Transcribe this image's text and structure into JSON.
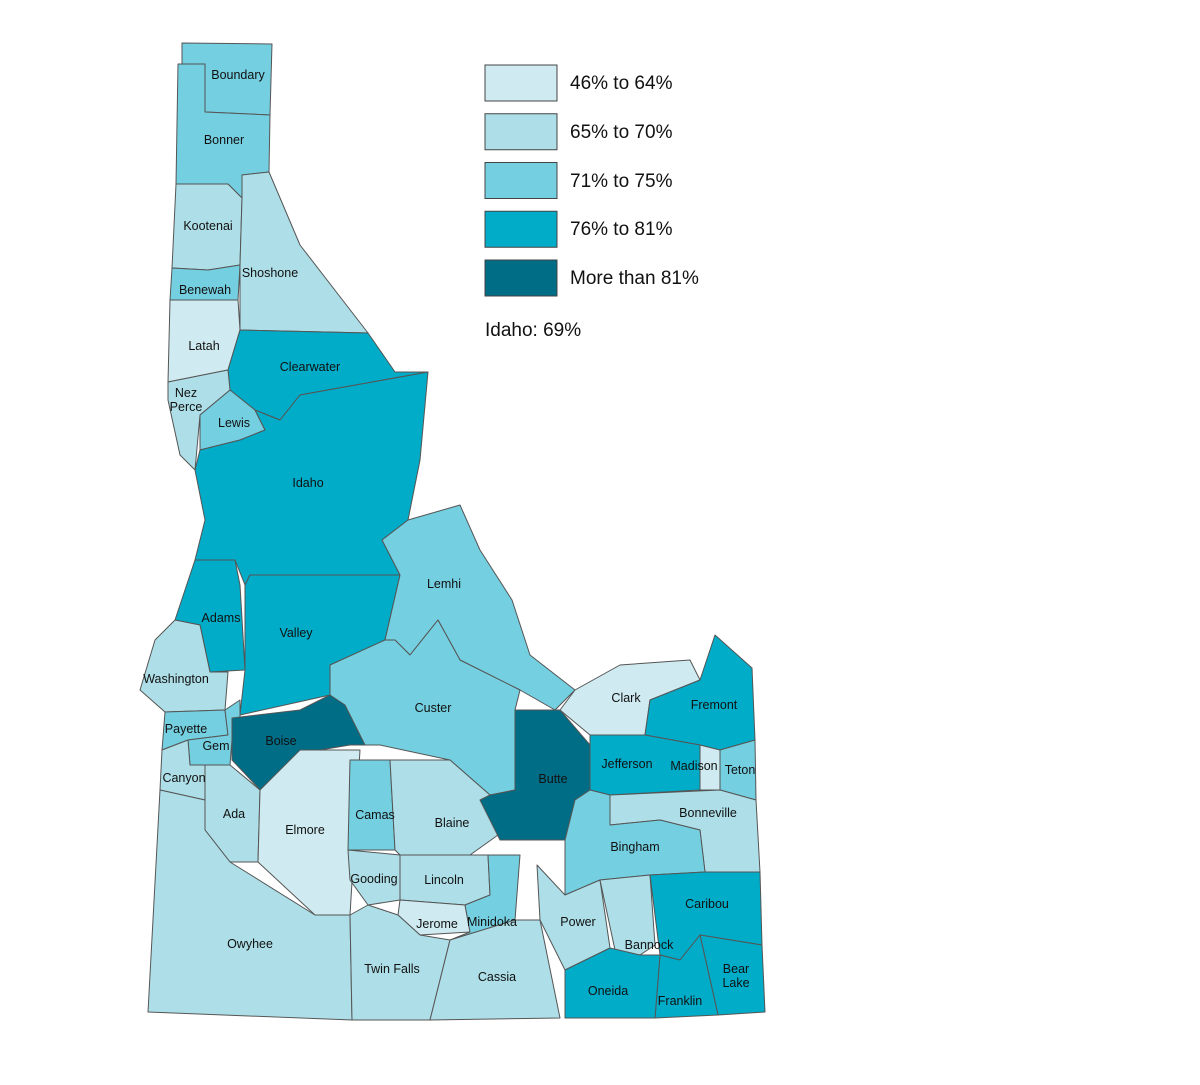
{
  "legend": {
    "items": [
      {
        "label": "46% to 64%",
        "color": "#cfeaf0"
      },
      {
        "label": "65% to 70%",
        "color": "#aedfe8"
      },
      {
        "label": "71% to 75%",
        "color": "#74cfe0"
      },
      {
        "label": "76% to 81%",
        "color": "#00acc8"
      },
      {
        "label": "More than 81%",
        "color": "#006d87"
      }
    ]
  },
  "statewide": "Idaho: 69%",
  "counties": [
    {
      "name": "Boundary",
      "color": "#74cfe0"
    },
    {
      "name": "Bonner",
      "color": "#74cfe0"
    },
    {
      "name": "Kootenai",
      "color": "#aedfe8"
    },
    {
      "name": "Shoshone",
      "color": "#aedfe8"
    },
    {
      "name": "Benewah",
      "color": "#74cfe0"
    },
    {
      "name": "Latah",
      "color": "#cfeaf0"
    },
    {
      "name": "Clearwater",
      "color": "#00acc8"
    },
    {
      "name": "Nez Perce",
      "color": "#aedfe8"
    },
    {
      "name": "Lewis",
      "color": "#74cfe0"
    },
    {
      "name": "Idaho",
      "color": "#00acc8"
    },
    {
      "name": "Adams",
      "color": "#00acc8"
    },
    {
      "name": "Valley",
      "color": "#00acc8"
    },
    {
      "name": "Washington",
      "color": "#aedfe8"
    },
    {
      "name": "Lemhi",
      "color": "#74cfe0"
    },
    {
      "name": "Custer",
      "color": "#74cfe0"
    },
    {
      "name": "Payette",
      "color": "#74cfe0"
    },
    {
      "name": "Gem",
      "color": "#74cfe0"
    },
    {
      "name": "Boise",
      "color": "#006d87"
    },
    {
      "name": "Canyon",
      "color": "#aedfe8"
    },
    {
      "name": "Ada",
      "color": "#aedfe8"
    },
    {
      "name": "Elmore",
      "color": "#cfeaf0"
    },
    {
      "name": "Owyhee",
      "color": "#aedfe8"
    },
    {
      "name": "Camas",
      "color": "#74cfe0"
    },
    {
      "name": "Blaine",
      "color": "#aedfe8"
    },
    {
      "name": "Butte",
      "color": "#006d87"
    },
    {
      "name": "Clark",
      "color": "#cfeaf0"
    },
    {
      "name": "Fremont",
      "color": "#00acc8"
    },
    {
      "name": "Jefferson",
      "color": "#00acc8"
    },
    {
      "name": "Madison",
      "color": "#cfeaf0"
    },
    {
      "name": "Teton",
      "color": "#74cfe0"
    },
    {
      "name": "Bonneville",
      "color": "#aedfe8"
    },
    {
      "name": "Bingham",
      "color": "#74cfe0"
    },
    {
      "name": "Gooding",
      "color": "#aedfe8"
    },
    {
      "name": "Lincoln",
      "color": "#aedfe8"
    },
    {
      "name": "Jerome",
      "color": "#cfeaf0"
    },
    {
      "name": "Minidoka",
      "color": "#74cfe0"
    },
    {
      "name": "Twin Falls",
      "color": "#aedfe8"
    },
    {
      "name": "Cassia",
      "color": "#aedfe8"
    },
    {
      "name": "Power",
      "color": "#aedfe8"
    },
    {
      "name": "Bannock",
      "color": "#aedfe8"
    },
    {
      "name": "Caribou",
      "color": "#00acc8"
    },
    {
      "name": "Bear Lake",
      "color": "#00acc8"
    },
    {
      "name": "Franklin",
      "color": "#00acc8"
    },
    {
      "name": "Oneida",
      "color": "#00acc8"
    }
  ]
}
